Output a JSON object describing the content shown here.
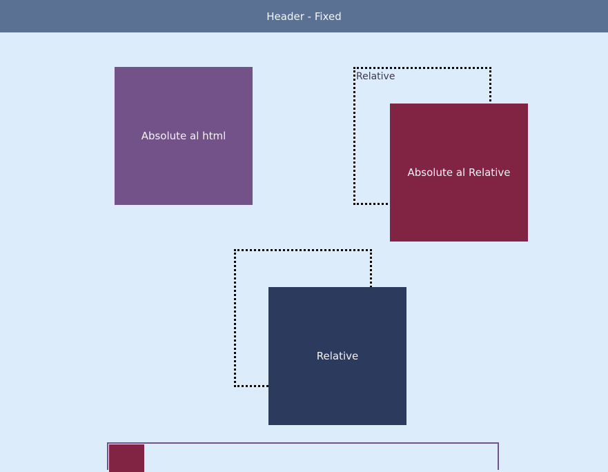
{
  "header": {
    "title": "Header - Fixed"
  },
  "boxes": {
    "absolute_html": "Absolute al html",
    "relative_container_label": "Relative",
    "absolute_relative": "Absolute al Relative",
    "relative_box": "Relative"
  },
  "colors": {
    "background": "#dcecfb",
    "header": "#5a7194",
    "purple": "#735289",
    "crimson": "#812444",
    "navy": "#2c3a5d"
  }
}
